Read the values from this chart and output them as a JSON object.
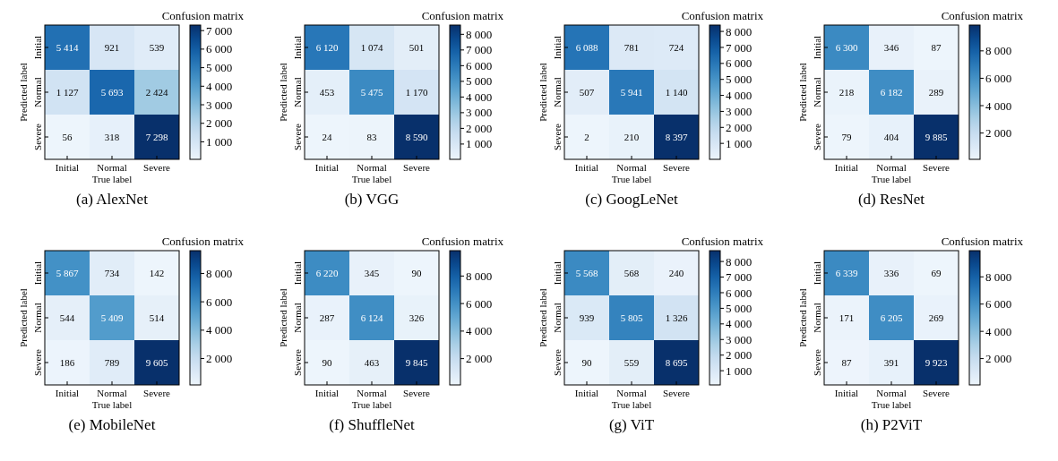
{
  "chart_data": [
    {
      "type": "heatmap",
      "title": "Confusion matrix",
      "xlabel": "True label",
      "ylabel": "Predicted label",
      "categories": [
        "Initial",
        "Normal",
        "Severe"
      ],
      "y_categories": [
        "Initial",
        "Normal",
        "Severe"
      ],
      "cells": [
        [
          5414,
          921,
          539
        ],
        [
          1127,
          5693,
          2424
        ],
        [
          56,
          318,
          7298
        ]
      ],
      "cell_labels": [
        [
          "5 414",
          "921",
          "539"
        ],
        [
          "1 127",
          "5 693",
          "2 424"
        ],
        [
          "56",
          "318",
          "7 298"
        ]
      ],
      "clim": [
        56,
        7298
      ],
      "cticks": [
        {
          "value": 1000,
          "label": "1 000"
        },
        {
          "value": 2000,
          "label": "2 000"
        },
        {
          "value": 3000,
          "label": "3 000"
        },
        {
          "value": 4000,
          "label": "4 000"
        },
        {
          "value": 5000,
          "label": "5 000"
        },
        {
          "value": 6000,
          "label": "6 000"
        },
        {
          "value": 7000,
          "label": "7 000"
        }
      ],
      "annotations": [
        "(a) AlexNet"
      ]
    },
    {
      "type": "heatmap",
      "title": "Confusion matrix",
      "xlabel": "True label",
      "ylabel": "Predicted label",
      "categories": [
        "Initial",
        "Normal",
        "Severe"
      ],
      "y_categories": [
        "Initial",
        "Normal",
        "Severe"
      ],
      "cells": [
        [
          6120,
          1074,
          501
        ],
        [
          453,
          5475,
          1170
        ],
        [
          24,
          83,
          8590
        ]
      ],
      "cell_labels": [
        [
          "6 120",
          "1 074",
          "501"
        ],
        [
          "453",
          "5 475",
          "1 170"
        ],
        [
          "24",
          "83",
          "8 590"
        ]
      ],
      "clim": [
        24,
        8590
      ],
      "cticks": [
        {
          "value": 1000,
          "label": "1 000"
        },
        {
          "value": 2000,
          "label": "2 000"
        },
        {
          "value": 3000,
          "label": "3 000"
        },
        {
          "value": 4000,
          "label": "4 000"
        },
        {
          "value": 5000,
          "label": "5 000"
        },
        {
          "value": 6000,
          "label": "6 000"
        },
        {
          "value": 7000,
          "label": "7 000"
        },
        {
          "value": 8000,
          "label": "8 000"
        }
      ],
      "annotations": [
        "(b) VGG"
      ]
    },
    {
      "type": "heatmap",
      "title": "Confusion matrix",
      "xlabel": "True label",
      "ylabel": "Predicted label",
      "categories": [
        "Initial",
        "Normal",
        "Severe"
      ],
      "y_categories": [
        "Initial",
        "Normal",
        "Severe"
      ],
      "cells": [
        [
          6088,
          781,
          724
        ],
        [
          507,
          5941,
          1140
        ],
        [
          2,
          210,
          8397
        ]
      ],
      "cell_labels": [
        [
          "6 088",
          "781",
          "724"
        ],
        [
          "507",
          "5 941",
          "1 140"
        ],
        [
          "2",
          "210",
          "8 397"
        ]
      ],
      "clim": [
        2,
        8397
      ],
      "cticks": [
        {
          "value": 1000,
          "label": "1 000"
        },
        {
          "value": 2000,
          "label": "2 000"
        },
        {
          "value": 3000,
          "label": "3 000"
        },
        {
          "value": 4000,
          "label": "4 000"
        },
        {
          "value": 5000,
          "label": "5 000"
        },
        {
          "value": 6000,
          "label": "6 000"
        },
        {
          "value": 7000,
          "label": "7 000"
        },
        {
          "value": 8000,
          "label": "8 000"
        }
      ],
      "annotations": [
        "(c) GoogLeNet"
      ]
    },
    {
      "type": "heatmap",
      "title": "Confusion matrix",
      "xlabel": "True label",
      "ylabel": "Predicted label",
      "categories": [
        "Initial",
        "Normal",
        "Severe"
      ],
      "y_categories": [
        "Initial",
        "Normal",
        "Severe"
      ],
      "cells": [
        [
          6300,
          346,
          87
        ],
        [
          218,
          6182,
          289
        ],
        [
          79,
          404,
          9885
        ]
      ],
      "cell_labels": [
        [
          "6 300",
          "346",
          "87"
        ],
        [
          "218",
          "6 182",
          "289"
        ],
        [
          "79",
          "404",
          "9 885"
        ]
      ],
      "clim": [
        79,
        9885
      ],
      "cticks": [
        {
          "value": 2000,
          "label": "2 000"
        },
        {
          "value": 4000,
          "label": "4 000"
        },
        {
          "value": 6000,
          "label": "6 000"
        },
        {
          "value": 8000,
          "label": "8 000"
        }
      ],
      "annotations": [
        "(d) ResNet"
      ]
    },
    {
      "type": "heatmap",
      "title": "Confusion matrix",
      "xlabel": "True label",
      "ylabel": "Predicted label",
      "categories": [
        "Initial",
        "Normal",
        "Severe"
      ],
      "y_categories": [
        "Initial",
        "Normal",
        "Severe"
      ],
      "cells": [
        [
          5867,
          734,
          142
        ],
        [
          544,
          5409,
          514
        ],
        [
          186,
          789,
          9605
        ]
      ],
      "cell_labels": [
        [
          "5 867",
          "734",
          "142"
        ],
        [
          "544",
          "5 409",
          "514"
        ],
        [
          "186",
          "789",
          "9 605"
        ]
      ],
      "clim": [
        142,
        9605
      ],
      "cticks": [
        {
          "value": 2000,
          "label": "2 000"
        },
        {
          "value": 4000,
          "label": "4 000"
        },
        {
          "value": 6000,
          "label": "6 000"
        },
        {
          "value": 8000,
          "label": "8 000"
        }
      ],
      "annotations": [
        "(e) MobileNet"
      ]
    },
    {
      "type": "heatmap",
      "title": "Confusion matrix",
      "xlabel": "True label",
      "ylabel": "Predicted label",
      "categories": [
        "Initial",
        "Normal",
        "Severe"
      ],
      "y_categories": [
        "Initial",
        "Normal",
        "Severe"
      ],
      "cells": [
        [
          6220,
          345,
          90
        ],
        [
          287,
          6124,
          326
        ],
        [
          90,
          463,
          9845
        ]
      ],
      "cell_labels": [
        [
          "6 220",
          "345",
          "90"
        ],
        [
          "287",
          "6 124",
          "326"
        ],
        [
          "90",
          "463",
          "9 845"
        ]
      ],
      "clim": [
        90,
        9845
      ],
      "cticks": [
        {
          "value": 2000,
          "label": "2 000"
        },
        {
          "value": 4000,
          "label": "4 000"
        },
        {
          "value": 6000,
          "label": "6 000"
        },
        {
          "value": 8000,
          "label": "8 000"
        }
      ],
      "annotations": [
        "(f) ShuffleNet"
      ]
    },
    {
      "type": "heatmap",
      "title": "Confusion matrix",
      "xlabel": "True label",
      "ylabel": "Predicted label",
      "categories": [
        "Initial",
        "Normal",
        "Severe"
      ],
      "y_categories": [
        "Initial",
        "Normal",
        "Severe"
      ],
      "cells": [
        [
          5568,
          568,
          240
        ],
        [
          939,
          5805,
          1326
        ],
        [
          90,
          559,
          8695
        ]
      ],
      "cell_labels": [
        [
          "5 568",
          "568",
          "240"
        ],
        [
          "939",
          "5 805",
          "1 326"
        ],
        [
          "90",
          "559",
          "8 695"
        ]
      ],
      "clim": [
        90,
        8695
      ],
      "cticks": [
        {
          "value": 1000,
          "label": "1 000"
        },
        {
          "value": 2000,
          "label": "2 000"
        },
        {
          "value": 3000,
          "label": "3 000"
        },
        {
          "value": 4000,
          "label": "4 000"
        },
        {
          "value": 5000,
          "label": "5 000"
        },
        {
          "value": 6000,
          "label": "6 000"
        },
        {
          "value": 7000,
          "label": "7 000"
        },
        {
          "value": 8000,
          "label": "8 000"
        }
      ],
      "annotations": [
        "(g) ViT"
      ]
    },
    {
      "type": "heatmap",
      "title": "Confusion matrix",
      "xlabel": "True label",
      "ylabel": "Predicted label",
      "categories": [
        "Initial",
        "Normal",
        "Severe"
      ],
      "y_categories": [
        "Initial",
        "Normal",
        "Severe"
      ],
      "cells": [
        [
          6339,
          336,
          69
        ],
        [
          171,
          6205,
          269
        ],
        [
          87,
          391,
          9923
        ]
      ],
      "cell_labels": [
        [
          "6 339",
          "336",
          "69"
        ],
        [
          "171",
          "6 205",
          "269"
        ],
        [
          "87",
          "391",
          "9 923"
        ]
      ],
      "clim": [
        69,
        9923
      ],
      "cticks": [
        {
          "value": 2000,
          "label": "2 000"
        },
        {
          "value": 4000,
          "label": "4 000"
        },
        {
          "value": 6000,
          "label": "6 000"
        },
        {
          "value": 8000,
          "label": "8 000"
        }
      ],
      "annotations": [
        "(h) P2ViT"
      ]
    }
  ]
}
